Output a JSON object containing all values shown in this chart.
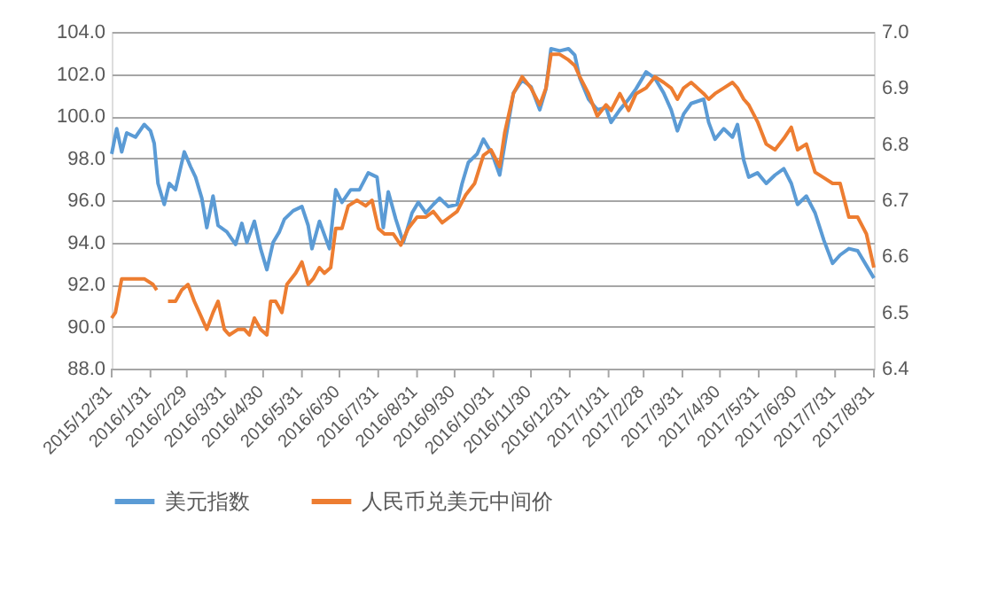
{
  "chart_data": {
    "type": "line",
    "legend": "bottom",
    "grid": "y",
    "xlim": [
      "2015-12-31",
      "2017-08-31"
    ],
    "xticks": [
      {
        "value": "2015-12-31",
        "label": "2015/12/31"
      },
      {
        "value": "2016-01-31",
        "label": "2016/1/31"
      },
      {
        "value": "2016-02-29",
        "label": "2016/2/29"
      },
      {
        "value": "2016-03-31",
        "label": "2016/3/31"
      },
      {
        "value": "2016-04-30",
        "label": "2016/4/30"
      },
      {
        "value": "2016-05-31",
        "label": "2016/5/31"
      },
      {
        "value": "2016-06-30",
        "label": "2016/6/30"
      },
      {
        "value": "2016-07-31",
        "label": "2016/7/31"
      },
      {
        "value": "2016-08-31",
        "label": "2016/8/31"
      },
      {
        "value": "2016-09-30",
        "label": "2016/9/30"
      },
      {
        "value": "2016-10-31",
        "label": "2016/10/31"
      },
      {
        "value": "2016-11-30",
        "label": "2016/11/30"
      },
      {
        "value": "2016-12-31",
        "label": "2016/12/31"
      },
      {
        "value": "2017-01-31",
        "label": "2017/1/31"
      },
      {
        "value": "2017-02-28",
        "label": "2017/2/28"
      },
      {
        "value": "2017-03-31",
        "label": "2017/3/31"
      },
      {
        "value": "2017-04-30",
        "label": "2017/4/30"
      },
      {
        "value": "2017-05-31",
        "label": "2017/5/31"
      },
      {
        "value": "2017-06-30",
        "label": "2017/6/30"
      },
      {
        "value": "2017-07-31",
        "label": "2017/7/31"
      },
      {
        "value": "2017-08-31",
        "label": "2017/8/31"
      }
    ],
    "ylim": [
      88.0,
      104.0
    ],
    "yticks": [
      {
        "value": 88,
        "label": "88.0"
      },
      {
        "value": 90,
        "label": "90.0"
      },
      {
        "value": 92,
        "label": "92.0"
      },
      {
        "value": 94,
        "label": "94.0"
      },
      {
        "value": 96,
        "label": "96.0"
      },
      {
        "value": 98,
        "label": "98.0"
      },
      {
        "value": 100,
        "label": "100.0"
      },
      {
        "value": 102,
        "label": "102.0"
      },
      {
        "value": 104,
        "label": "104.0"
      }
    ],
    "y2lim": [
      6.4,
      7.0
    ],
    "y2ticks": [
      {
        "value": 6.4,
        "label": "6.4"
      },
      {
        "value": 6.5,
        "label": "6.5"
      },
      {
        "value": 6.6,
        "label": "6.6"
      },
      {
        "value": 6.7,
        "label": "6.7"
      },
      {
        "value": 6.8,
        "label": "6.8"
      },
      {
        "value": 6.9,
        "label": "6.9"
      },
      {
        "value": 7.0,
        "label": "7.0"
      }
    ],
    "series": [
      {
        "name": "美元指数",
        "color": "#5b9bd5",
        "x": [
          "2015-12-31",
          "2016-01-04",
          "2016-01-08",
          "2016-01-12",
          "2016-01-19",
          "2016-01-26",
          "2016-01-31",
          "2016-02-03",
          "2016-02-06",
          "2016-02-11",
          "2016-02-15",
          "2016-02-20",
          "2016-02-27",
          "2016-03-03",
          "2016-03-07",
          "2016-03-12",
          "2016-03-16",
          "2016-03-21",
          "2016-03-25",
          "2016-04-01",
          "2016-04-08",
          "2016-04-13",
          "2016-04-17",
          "2016-04-23",
          "2016-04-28",
          "2016-05-03",
          "2016-05-08",
          "2016-05-13",
          "2016-05-17",
          "2016-05-24",
          "2016-05-31",
          "2016-06-05",
          "2016-06-08",
          "2016-06-14",
          "2016-06-22",
          "2016-06-27",
          "2016-07-02",
          "2016-07-09",
          "2016-07-16",
          "2016-07-23",
          "2016-07-30",
          "2016-08-04",
          "2016-08-08",
          "2016-08-14",
          "2016-08-20",
          "2016-08-27",
          "2016-09-01",
          "2016-09-07",
          "2016-09-13",
          "2016-09-18",
          "2016-09-25",
          "2016-10-02",
          "2016-10-06",
          "2016-10-11",
          "2016-10-18",
          "2016-10-23",
          "2016-10-30",
          "2016-11-05",
          "2016-11-10",
          "2016-11-16",
          "2016-11-23",
          "2016-11-30",
          "2016-12-07",
          "2016-12-12",
          "2016-12-16",
          "2016-12-23",
          "2016-12-30",
          "2017-01-04",
          "2017-01-08",
          "2017-01-15",
          "2017-01-22",
          "2017-01-29",
          "2017-02-02",
          "2017-02-09",
          "2017-02-16",
          "2017-02-22",
          "2017-03-02",
          "2017-03-09",
          "2017-03-16",
          "2017-03-22",
          "2017-03-27",
          "2017-04-01",
          "2017-04-07",
          "2017-04-17",
          "2017-04-21",
          "2017-04-26",
          "2017-05-03",
          "2017-05-10",
          "2017-05-14",
          "2017-05-19",
          "2017-05-23",
          "2017-05-30",
          "2017-06-06",
          "2017-06-13",
          "2017-06-20",
          "2017-06-26",
          "2017-07-01",
          "2017-07-08",
          "2017-07-15",
          "2017-07-22",
          "2017-07-29",
          "2017-08-04",
          "2017-08-11",
          "2017-08-18",
          "2017-08-25",
          "2017-08-31"
        ],
        "values": [
          98.2,
          99.4,
          98.3,
          99.2,
          99.0,
          99.6,
          99.3,
          98.7,
          96.8,
          95.8,
          96.8,
          96.5,
          98.3,
          97.6,
          97.1,
          96.1,
          94.7,
          96.2,
          94.8,
          94.5,
          93.9,
          94.9,
          94.0,
          95.0,
          93.7,
          92.7,
          94.0,
          94.5,
          95.1,
          95.5,
          95.7,
          94.8,
          93.7,
          95.0,
          93.7,
          96.5,
          95.9,
          96.5,
          96.5,
          97.3,
          97.1,
          94.7,
          96.4,
          95.1,
          94.0,
          95.4,
          95.9,
          95.4,
          95.8,
          96.1,
          95.7,
          95.8,
          96.8,
          97.8,
          98.2,
          98.9,
          98.2,
          97.2,
          99.0,
          101.1,
          101.7,
          101.4,
          100.3,
          101.3,
          103.2,
          103.1,
          103.2,
          102.9,
          101.8,
          100.8,
          100.3,
          100.4,
          99.7,
          100.3,
          100.8,
          101.3,
          102.1,
          101.8,
          101.1,
          100.3,
          99.3,
          100.1,
          100.6,
          100.8,
          99.7,
          98.9,
          99.4,
          99.0,
          99.6,
          97.9,
          97.1,
          97.3,
          96.8,
          97.2,
          97.5,
          96.8,
          95.8,
          96.2,
          95.4,
          94.1,
          93.0,
          93.4,
          93.7,
          93.6,
          92.9,
          92.3
        ]
      },
      {
        "name": "人民币兑美元中间价",
        "color": "#ed7d31",
        "axis": "y2",
        "x": [
          "2015-12-31",
          "2016-01-03",
          "2016-01-08",
          "2016-01-12",
          "2016-01-19",
          "2016-01-26",
          "2016-02-02",
          "2016-02-05",
          "2016-02-10",
          "2016-02-14",
          "2016-02-20",
          "2016-02-25",
          "2016-03-01",
          "2016-03-06",
          "2016-03-10",
          "2016-03-16",
          "2016-03-21",
          "2016-03-25",
          "2016-03-30",
          "2016-04-03",
          "2016-04-10",
          "2016-04-15",
          "2016-04-19",
          "2016-04-23",
          "2016-04-28",
          "2016-05-03",
          "2016-05-06",
          "2016-05-10",
          "2016-05-15",
          "2016-05-19",
          "2016-05-26",
          "2016-05-31",
          "2016-06-05",
          "2016-06-09",
          "2016-06-14",
          "2016-06-18",
          "2016-06-23",
          "2016-06-27",
          "2016-07-02",
          "2016-07-07",
          "2016-07-14",
          "2016-07-21",
          "2016-07-26",
          "2016-07-31",
          "2016-08-05",
          "2016-08-12",
          "2016-08-18",
          "2016-08-24",
          "2016-08-31",
          "2016-09-07",
          "2016-09-13",
          "2016-09-20",
          "2016-09-26",
          "2016-10-02",
          "2016-10-09",
          "2016-10-16",
          "2016-10-23",
          "2016-10-29",
          "2016-11-05",
          "2016-11-09",
          "2016-11-16",
          "2016-11-23",
          "2016-11-30",
          "2016-12-07",
          "2016-12-12",
          "2016-12-16",
          "2016-12-23",
          "2016-12-30",
          "2017-01-04",
          "2017-01-08",
          "2017-01-15",
          "2017-01-22",
          "2017-01-29",
          "2017-02-02",
          "2017-02-09",
          "2017-02-16",
          "2017-02-22",
          "2017-03-02",
          "2017-03-09",
          "2017-03-16",
          "2017-03-22",
          "2017-03-27",
          "2017-04-01",
          "2017-04-07",
          "2017-04-17",
          "2017-04-21",
          "2017-04-26",
          "2017-05-03",
          "2017-05-10",
          "2017-05-14",
          "2017-05-19",
          "2017-05-23",
          "2017-05-30",
          "2017-06-06",
          "2017-06-13",
          "2017-06-20",
          "2017-06-26",
          "2017-07-01",
          "2017-07-08",
          "2017-07-15",
          "2017-07-22",
          "2017-07-29",
          "2017-08-04",
          "2017-08-11",
          "2017-08-18",
          "2017-08-25",
          "2017-08-31"
        ],
        "values": [
          6.49,
          6.5,
          6.56,
          6.56,
          6.56,
          6.56,
          6.55,
          6.54,
          null,
          6.52,
          6.52,
          6.54,
          6.55,
          6.52,
          6.5,
          6.47,
          6.5,
          6.52,
          6.47,
          6.46,
          6.47,
          6.47,
          6.46,
          6.49,
          6.47,
          6.46,
          6.52,
          6.52,
          6.5,
          6.55,
          6.57,
          6.59,
          6.55,
          6.56,
          6.58,
          6.57,
          6.58,
          6.65,
          6.65,
          6.69,
          6.7,
          6.69,
          6.7,
          6.65,
          6.64,
          6.64,
          6.62,
          6.65,
          6.67,
          6.67,
          6.68,
          6.66,
          6.67,
          6.68,
          6.71,
          6.73,
          6.78,
          6.79,
          6.76,
          6.82,
          6.89,
          6.92,
          6.9,
          6.87,
          6.9,
          6.96,
          6.96,
          6.95,
          6.94,
          6.92,
          6.89,
          6.85,
          6.87,
          6.86,
          6.89,
          6.86,
          6.89,
          6.9,
          6.92,
          6.91,
          6.9,
          6.88,
          6.9,
          6.91,
          6.89,
          6.88,
          6.89,
          6.9,
          6.91,
          6.9,
          6.88,
          6.87,
          6.84,
          6.8,
          6.79,
          6.81,
          6.83,
          6.79,
          6.8,
          6.75,
          6.74,
          6.73,
          6.73,
          6.67,
          6.67,
          6.64,
          6.58
        ]
      }
    ]
  }
}
